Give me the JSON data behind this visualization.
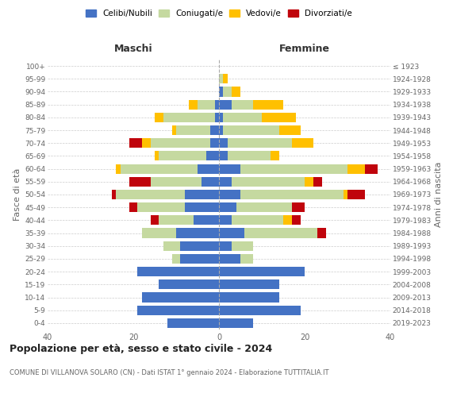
{
  "age_groups": [
    "0-4",
    "5-9",
    "10-14",
    "15-19",
    "20-24",
    "25-29",
    "30-34",
    "35-39",
    "40-44",
    "45-49",
    "50-54",
    "55-59",
    "60-64",
    "65-69",
    "70-74",
    "75-79",
    "80-84",
    "85-89",
    "90-94",
    "95-99",
    "100+"
  ],
  "birth_years": [
    "2019-2023",
    "2014-2018",
    "2009-2013",
    "2004-2008",
    "1999-2003",
    "1994-1998",
    "1989-1993",
    "1984-1988",
    "1979-1983",
    "1974-1978",
    "1969-1973",
    "1964-1968",
    "1959-1963",
    "1954-1958",
    "1949-1953",
    "1944-1948",
    "1939-1943",
    "1934-1938",
    "1929-1933",
    "1924-1928",
    "≤ 1923"
  ],
  "maschi": {
    "celibi": [
      12,
      19,
      18,
      14,
      19,
      9,
      9,
      10,
      6,
      8,
      8,
      4,
      5,
      3,
      2,
      2,
      1,
      1,
      0,
      0,
      0
    ],
    "coniugati": [
      0,
      0,
      0,
      0,
      0,
      2,
      4,
      8,
      8,
      11,
      16,
      12,
      18,
      11,
      14,
      8,
      12,
      4,
      0,
      0,
      0
    ],
    "vedovi": [
      0,
      0,
      0,
      0,
      0,
      0,
      0,
      0,
      0,
      0,
      0,
      0,
      1,
      1,
      2,
      1,
      2,
      2,
      0,
      0,
      0
    ],
    "divorziati": [
      0,
      0,
      0,
      0,
      0,
      0,
      0,
      0,
      2,
      2,
      1,
      5,
      0,
      0,
      3,
      0,
      0,
      0,
      0,
      0,
      0
    ]
  },
  "femmine": {
    "nubili": [
      8,
      19,
      14,
      14,
      20,
      5,
      3,
      6,
      3,
      4,
      5,
      3,
      5,
      2,
      2,
      1,
      1,
      3,
      1,
      0,
      0
    ],
    "coniugate": [
      0,
      0,
      0,
      0,
      0,
      3,
      5,
      17,
      12,
      13,
      24,
      17,
      25,
      10,
      15,
      13,
      9,
      5,
      2,
      1,
      0
    ],
    "vedove": [
      0,
      0,
      0,
      0,
      0,
      0,
      0,
      0,
      2,
      0,
      1,
      2,
      4,
      2,
      5,
      5,
      8,
      7,
      2,
      1,
      0
    ],
    "divorziate": [
      0,
      0,
      0,
      0,
      0,
      0,
      0,
      2,
      2,
      3,
      4,
      2,
      3,
      0,
      0,
      0,
      0,
      0,
      0,
      0,
      0
    ]
  },
  "colors": {
    "celibi": "#4472c4",
    "coniugati": "#c5d9a0",
    "vedovi": "#ffc000",
    "divorziati": "#c0040c"
  },
  "xlim": 40,
  "title": "Popolazione per età, sesso e stato civile - 2024",
  "subtitle": "COMUNE DI VILLANOVA SOLARO (CN) - Dati ISTAT 1° gennaio 2024 - Elaborazione TUTTITALIA.IT",
  "ylabel": "Fasce di età",
  "ylabel_right": "Anni di nascita",
  "xlabel_left": "Maschi",
  "xlabel_right": "Femmine",
  "bg_color": "#ffffff",
  "grid_color": "#cccccc",
  "bar_height": 0.75
}
